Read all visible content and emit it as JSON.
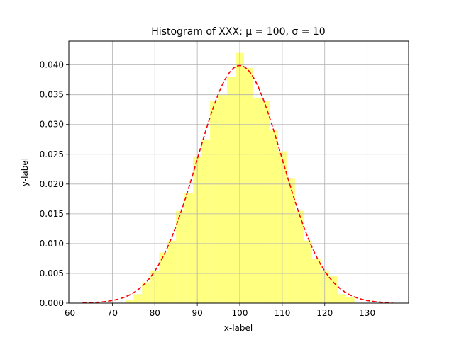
{
  "chart_data": {
    "type": "bar",
    "title": "Histogram of XXX: μ = 100, σ = 10",
    "xlabel": "x-label",
    "ylabel": "y-label",
    "xlim": [
      60,
      140
    ],
    "ylim": [
      0,
      0.044
    ],
    "x_ticks": [
      60,
      70,
      80,
      90,
      100,
      110,
      120,
      130
    ],
    "y_ticks": [
      0.0,
      0.005,
      0.01,
      0.015,
      0.02,
      0.025,
      0.03,
      0.035,
      0.04
    ],
    "grid": true,
    "bar_color": "#ffff80",
    "curve_color": "#ff0000",
    "bins": [
      {
        "x0": 63.0,
        "x1": 64.0,
        "density": 0.0
      },
      {
        "x0": 73.0,
        "x1": 75.0,
        "density": 0.0005
      },
      {
        "x0": 75.0,
        "x1": 77.0,
        "density": 0.0015
      },
      {
        "x0": 77.0,
        "x1": 79.0,
        "density": 0.0035
      },
      {
        "x0": 79.0,
        "x1": 81.0,
        "density": 0.0055
      },
      {
        "x0": 81.0,
        "x1": 83.0,
        "density": 0.0085
      },
      {
        "x0": 83.0,
        "x1": 85.0,
        "density": 0.0105
      },
      {
        "x0": 85.0,
        "x1": 87.0,
        "density": 0.0155
      },
      {
        "x0": 87.0,
        "x1": 89.0,
        "density": 0.0185
      },
      {
        "x0": 89.0,
        "x1": 91.0,
        "density": 0.0245
      },
      {
        "x0": 91.0,
        "x1": 93.0,
        "density": 0.0275
      },
      {
        "x0": 93.0,
        "x1": 95.0,
        "density": 0.034
      },
      {
        "x0": 95.0,
        "x1": 97.0,
        "density": 0.035
      },
      {
        "x0": 97.0,
        "x1": 99.0,
        "density": 0.038
      },
      {
        "x0": 99.0,
        "x1": 101.0,
        "density": 0.042
      },
      {
        "x0": 101.0,
        "x1": 103.0,
        "density": 0.0395
      },
      {
        "x0": 103.0,
        "x1": 105.0,
        "density": 0.0345
      },
      {
        "x0": 105.0,
        "x1": 107.0,
        "density": 0.034
      },
      {
        "x0": 107.0,
        "x1": 109.0,
        "density": 0.029
      },
      {
        "x0": 109.0,
        "x1": 111.0,
        "density": 0.0255
      },
      {
        "x0": 111.0,
        "x1": 113.0,
        "density": 0.021
      },
      {
        "x0": 113.0,
        "x1": 115.0,
        "density": 0.0155
      },
      {
        "x0": 115.0,
        "x1": 117.0,
        "density": 0.0105
      },
      {
        "x0": 117.0,
        "x1": 119.0,
        "density": 0.0075
      },
      {
        "x0": 119.0,
        "x1": 121.0,
        "density": 0.0055
      },
      {
        "x0": 121.0,
        "x1": 123.0,
        "density": 0.0045
      },
      {
        "x0": 123.0,
        "x1": 125.0,
        "density": 0.0015
      },
      {
        "x0": 125.0,
        "x1": 127.0,
        "density": 0.001
      }
    ],
    "curve": {
      "type": "normal-pdf",
      "mu": 100,
      "sigma": 10,
      "x_range": [
        63.0,
        136.0
      ]
    }
  }
}
